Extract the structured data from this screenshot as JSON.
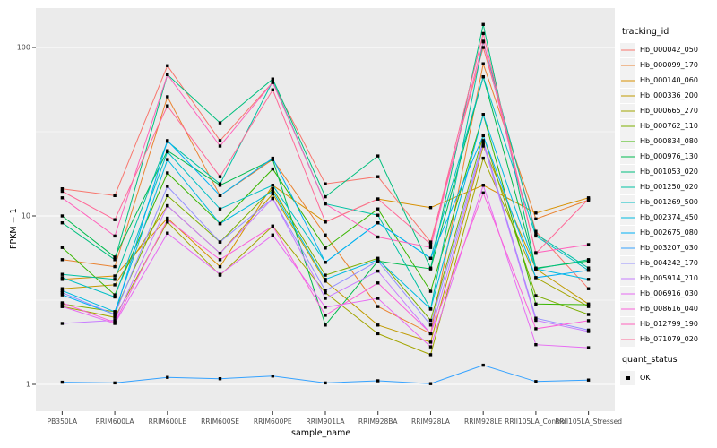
{
  "figure": {
    "panel_bg": "#EBEBEB",
    "grid_color": "#FFFFFF",
    "tick_color": "#333333",
    "tick_label_color": "#4D4D4D",
    "point_color": "#000000",
    "legend_key_bg": "#F2F2F2"
  },
  "legend": {
    "tracking_title": "tracking_id",
    "quant_title": "quant_status",
    "quant_items": [
      "OK"
    ]
  },
  "chart_data": {
    "type": "line",
    "title": "",
    "xlabel": "sample_name",
    "ylabel": "FPKM + 1",
    "yscale": "log10",
    "ylim": [
      0.69,
      171
    ],
    "y_major_ticks": [
      1,
      10,
      100
    ],
    "y_minor_ticks": [
      3.162,
      31.62
    ],
    "grid": true,
    "legend_position": "right",
    "point_marker": {
      "shape": "square",
      "color": "#000000",
      "legend_label": "OK"
    },
    "categories": [
      "PB350LA",
      "RRIM600LA",
      "RRIM600LE",
      "RRIM600SE",
      "RRIM600PE",
      "RRIM901LA",
      "RRIM928BA",
      "RRIM928LA",
      "RRIM928LE",
      "RRII105LA_Control",
      "RRII105LA_Stressed"
    ],
    "series": [
      {
        "name": "Hb_000042_050",
        "color": "#F8766D",
        "values": [
          14.5,
          13.2,
          78,
          28,
          62,
          15.5,
          17.1,
          7.0,
          100,
          8.1,
          3.7
        ]
      },
      {
        "name": "Hb_000099_170",
        "color": "#EA8331",
        "values": [
          5.5,
          5.0,
          51,
          13.2,
          21.6,
          7.7,
          2.9,
          2.0,
          80,
          9.6,
          12.4
        ]
      },
      {
        "name": "Hb_000140_060",
        "color": "#D89000",
        "values": [
          4.2,
          4.4,
          9.7,
          5.0,
          15.2,
          9.2,
          12.6,
          11.2,
          15.2,
          10.4,
          12.8
        ]
      },
      {
        "name": "Hb_000336_200",
        "color": "#C09B00",
        "values": [
          3.7,
          3.9,
          11.5,
          6.0,
          13.5,
          4.1,
          2.25,
          1.78,
          26,
          4.85,
          3.0
        ]
      },
      {
        "name": "Hb_000665_270",
        "color": "#A3A500",
        "values": [
          2.9,
          2.5,
          9.2,
          4.45,
          8.7,
          3.5,
          2.0,
          1.5,
          22,
          4.3,
          2.9
        ]
      },
      {
        "name": "Hb_000762_110",
        "color": "#7CAE00",
        "values": [
          3.0,
          2.7,
          13.2,
          7.0,
          14.5,
          4.45,
          5.6,
          2.4,
          30,
          3.36,
          2.6
        ]
      },
      {
        "name": "Hb_000834_080",
        "color": "#39B600",
        "values": [
          6.5,
          3.4,
          18,
          9.0,
          19,
          6.45,
          11.0,
          3.57,
          40,
          3.0,
          2.97
        ]
      },
      {
        "name": "Hb_000976_130",
        "color": "#00BB4E",
        "values": [
          10.0,
          5.7,
          24.4,
          15.2,
          21.6,
          2.25,
          5.4,
          4.85,
          67,
          4.9,
          5.4
        ]
      },
      {
        "name": "Hb_001053_020",
        "color": "#00BF7D",
        "values": [
          9.1,
          5.5,
          69,
          35.7,
          65,
          13.0,
          22.7,
          4.9,
          137,
          4.85,
          5.5
        ]
      },
      {
        "name": "Hb_001250_020",
        "color": "#00C1A3",
        "values": [
          4.5,
          4.2,
          27.7,
          15.5,
          63,
          11.8,
          10.1,
          2.8,
          108,
          7.8,
          4.9
        ]
      },
      {
        "name": "Hb_001269_500",
        "color": "#00BFC4",
        "values": [
          4.3,
          3.3,
          24,
          11.0,
          15.2,
          5.3,
          9.1,
          5.6,
          67,
          7.6,
          4.75
        ]
      },
      {
        "name": "Hb_002374_450",
        "color": "#00BAE0",
        "values": [
          3.6,
          2.7,
          21.6,
          9.0,
          14,
          4.2,
          5.5,
          2.8,
          40,
          4.85,
          4.2
        ]
      },
      {
        "name": "Hb_002675_080",
        "color": "#00B0F6",
        "values": [
          3.4,
          2.6,
          28,
          13.2,
          22,
          5.3,
          9.1,
          5.6,
          30,
          4.3,
          4.75
        ]
      },
      {
        "name": "Hb_003207_030",
        "color": "#35A2FF",
        "values": [
          1.03,
          1.02,
          1.1,
          1.08,
          1.12,
          1.02,
          1.05,
          1.01,
          1.3,
          1.04,
          1.06
        ]
      },
      {
        "name": "Hb_004242_170",
        "color": "#9590FF",
        "values": [
          3.5,
          2.6,
          15,
          7.0,
          12.7,
          3.6,
          5.4,
          2.25,
          28,
          2.47,
          2.1
        ]
      },
      {
        "name": "Hb_005914_210",
        "color": "#C77CFF",
        "values": [
          2.3,
          2.4,
          11.5,
          6.0,
          12.7,
          3.24,
          4.7,
          2.0,
          27,
          2.4,
          2.06
        ]
      },
      {
        "name": "Hb_006916_030",
        "color": "#E76BF3",
        "values": [
          2.9,
          2.3,
          7.9,
          4.5,
          7.7,
          2.87,
          3.24,
          1.67,
          15.2,
          1.72,
          1.65
        ]
      },
      {
        "name": "Hb_008616_040",
        "color": "#FA62DB",
        "values": [
          3.05,
          2.33,
          9.5,
          5.5,
          8.7,
          2.57,
          4.0,
          2.01,
          13.7,
          2.14,
          2.39
        ]
      },
      {
        "name": "Hb_012799_190",
        "color": "#FF62BC",
        "values": [
          12.8,
          7.6,
          69,
          26,
          62,
          11.8,
          7.5,
          6.5,
          109,
          6.05,
          6.76
        ]
      },
      {
        "name": "Hb_071079_020",
        "color": "#FF6A98",
        "values": [
          14.0,
          9.5,
          45,
          17.1,
          56,
          9.2,
          12.6,
          6.8,
          121,
          6.0,
          12.6
        ]
      }
    ]
  }
}
